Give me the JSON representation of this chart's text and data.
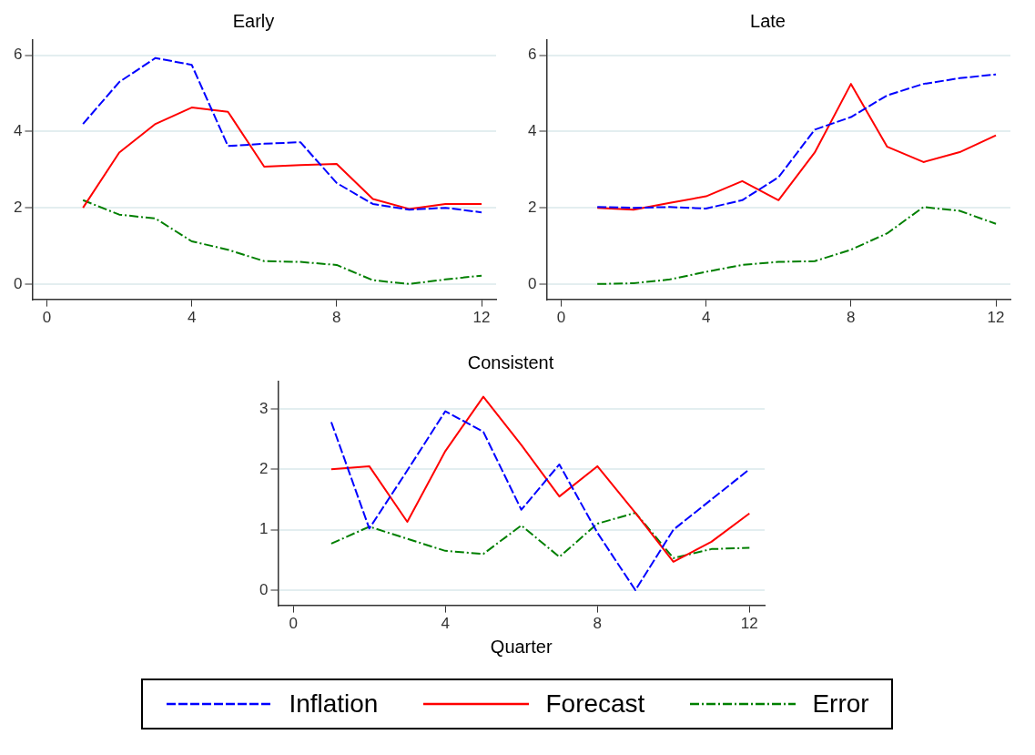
{
  "chart_data": [
    {
      "type": "line",
      "title": "Early",
      "x": [
        1,
        2,
        3,
        4,
        5,
        6,
        7,
        8,
        9,
        10,
        11,
        12
      ],
      "xlim": [
        -0.4,
        12.4
      ],
      "xticks": [
        0,
        4,
        8,
        12
      ],
      "ylim": [
        -0.4,
        6.4
      ],
      "yticks": [
        0,
        2,
        4,
        6
      ],
      "grid": "y",
      "legend": "bottom",
      "series": [
        {
          "name": "Inflation",
          "color": "#0000ff",
          "line_style": "dashed",
          "values": [
            4.2,
            5.3,
            5.93,
            5.75,
            3.62,
            3.68,
            3.72,
            2.65,
            2.1,
            1.95,
            2.0,
            1.88
          ]
        },
        {
          "name": "Forecast",
          "color": "#ff0000",
          "line_style": "solid",
          "values": [
            2.0,
            3.45,
            4.2,
            4.63,
            4.52,
            3.08,
            3.12,
            3.15,
            2.23,
            1.97,
            2.1,
            2.1
          ]
        },
        {
          "name": "Error",
          "color": "#007f00",
          "line_style": "dashdot",
          "values": [
            2.2,
            1.82,
            1.72,
            1.12,
            0.9,
            0.6,
            0.58,
            0.5,
            0.1,
            0.0,
            0.12,
            0.22
          ]
        }
      ]
    },
    {
      "type": "line",
      "title": "Late",
      "x": [
        1,
        2,
        3,
        4,
        5,
        6,
        7,
        8,
        9,
        10,
        11,
        12
      ],
      "xlim": [
        -0.4,
        12.4
      ],
      "xticks": [
        0,
        4,
        8,
        12
      ],
      "ylim": [
        -0.4,
        6.4
      ],
      "yticks": [
        0,
        2,
        4,
        6
      ],
      "grid": "y",
      "series": [
        {
          "color": "#0000ff",
          "line_style": "dashed",
          "values": [
            2.02,
            2.0,
            2.02,
            1.98,
            2.2,
            2.8,
            4.05,
            4.38,
            4.95,
            5.25,
            5.4,
            5.5
          ]
        },
        {
          "color": "#ff0000",
          "line_style": "solid",
          "values": [
            2.0,
            1.95,
            2.13,
            2.3,
            2.7,
            2.2,
            3.45,
            5.25,
            3.6,
            3.2,
            3.46,
            3.9
          ]
        },
        {
          "color": "#007f00",
          "line_style": "dashdot",
          "values": [
            0.0,
            0.02,
            0.12,
            0.32,
            0.5,
            0.58,
            0.6,
            0.9,
            1.33,
            2.02,
            1.92,
            1.58
          ]
        }
      ]
    },
    {
      "type": "line",
      "title": "Consistent",
      "xlabel": "Quarter",
      "x": [
        1,
        2,
        3,
        4,
        5,
        6,
        7,
        8,
        9,
        10,
        11,
        12
      ],
      "xlim": [
        -0.4,
        12.4
      ],
      "xticks": [
        0,
        4,
        8,
        12
      ],
      "ylim": [
        -0.25,
        3.45
      ],
      "yticks": [
        0,
        1,
        2,
        3
      ],
      "grid": "y",
      "series": [
        {
          "color": "#0000ff",
          "line_style": "dashed",
          "values": [
            2.78,
            1.02,
            1.98,
            2.96,
            2.62,
            1.33,
            2.08,
            0.95,
            0.0,
            1.0,
            1.5,
            2.0
          ]
        },
        {
          "color": "#ff0000",
          "line_style": "solid",
          "values": [
            2.0,
            2.05,
            1.13,
            2.3,
            3.2,
            2.4,
            1.55,
            2.05,
            1.28,
            0.47,
            0.8,
            1.27
          ]
        },
        {
          "color": "#007f00",
          "line_style": "dashdot",
          "values": [
            0.77,
            1.05,
            0.85,
            0.65,
            0.6,
            1.07,
            0.55,
            1.1,
            1.28,
            0.53,
            0.68,
            0.7
          ]
        }
      ]
    }
  ]
}
